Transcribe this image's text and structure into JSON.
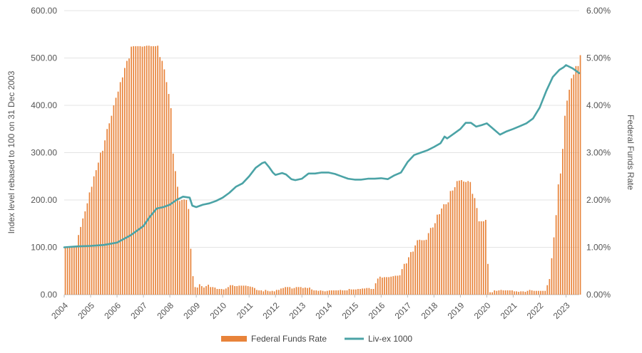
{
  "chart_data": {
    "type": "bar+line",
    "left_axis": {
      "label": "Index level rebased to 100 on 31 Dec 2003",
      "ylim": [
        0,
        600
      ],
      "ticks": [
        "0.00",
        "100.00",
        "200.00",
        "300.00",
        "400.00",
        "500.00",
        "600.00"
      ]
    },
    "right_axis": {
      "label": "Federal Funds Rate",
      "ylim": [
        0,
        6
      ],
      "ticks": [
        "0.00%",
        "1.00%",
        "2.00%",
        "3.00%",
        "4.00%",
        "5.00%",
        "6.00%"
      ]
    },
    "x_axis": {
      "range": [
        2004,
        2023.5
      ],
      "tick_labels": [
        "2004",
        "2005",
        "2006",
        "2007",
        "2008",
        "2009",
        "2010",
        "2011",
        "2012",
        "2013",
        "2014",
        "2015",
        "2016",
        "2017",
        "2018",
        "2019",
        "2020",
        "2021",
        "2022",
        "2023"
      ]
    },
    "grid": true,
    "legend_position": "bottom",
    "colors": {
      "bars": "#E8833A",
      "line": "#4BA3A6"
    },
    "series": [
      {
        "name": "Federal Funds Rate",
        "kind": "bar",
        "axis": "right",
        "monthly_start": 2004.0,
        "values": [
          1.0,
          1.0,
          1.0,
          1.0,
          1.0,
          1.03,
          1.26,
          1.43,
          1.61,
          1.76,
          1.93,
          2.16,
          2.28,
          2.5,
          2.63,
          2.79,
          3.0,
          3.04,
          3.26,
          3.5,
          3.62,
          3.78,
          4.0,
          4.16,
          4.29,
          4.49,
          4.59,
          4.79,
          4.94,
          4.99,
          5.24,
          5.25,
          5.25,
          5.25,
          5.25,
          5.24,
          5.25,
          5.26,
          5.26,
          5.25,
          5.25,
          5.25,
          5.26,
          5.02,
          4.94,
          4.76,
          4.49,
          4.24,
          3.94,
          2.98,
          2.61,
          2.28,
          1.98,
          2.0,
          2.01,
          2.0,
          1.81,
          0.97,
          0.39,
          0.16,
          0.15,
          0.22,
          0.18,
          0.15,
          0.18,
          0.21,
          0.16,
          0.16,
          0.15,
          0.12,
          0.12,
          0.12,
          0.11,
          0.13,
          0.16,
          0.2,
          0.2,
          0.18,
          0.18,
          0.19,
          0.19,
          0.19,
          0.19,
          0.18,
          0.17,
          0.16,
          0.14,
          0.1,
          0.09,
          0.09,
          0.07,
          0.1,
          0.08,
          0.07,
          0.08,
          0.07,
          0.1,
          0.1,
          0.13,
          0.14,
          0.16,
          0.16,
          0.16,
          0.13,
          0.14,
          0.16,
          0.16,
          0.16,
          0.14,
          0.15,
          0.14,
          0.15,
          0.11,
          0.09,
          0.09,
          0.08,
          0.09,
          0.08,
          0.07,
          0.08,
          0.09,
          0.09,
          0.09,
          0.09,
          0.09,
          0.1,
          0.09,
          0.09,
          0.09,
          0.12,
          0.11,
          0.11,
          0.11,
          0.12,
          0.12,
          0.13,
          0.13,
          0.14,
          0.14,
          0.12,
          0.12,
          0.24,
          0.34,
          0.38,
          0.36,
          0.37,
          0.37,
          0.37,
          0.38,
          0.39,
          0.4,
          0.4,
          0.41,
          0.54,
          0.65,
          0.66,
          0.79,
          0.9,
          0.91,
          1.04,
          1.15,
          1.16,
          1.15,
          1.15,
          1.16,
          1.3,
          1.41,
          1.42,
          1.51,
          1.69,
          1.7,
          1.82,
          1.91,
          1.91,
          1.95,
          2.19,
          2.2,
          2.27,
          2.4,
          2.41,
          2.42,
          2.39,
          2.38,
          2.4,
          2.38,
          2.13,
          2.04,
          1.83,
          1.55,
          1.55,
          1.55,
          1.58,
          0.65,
          0.05,
          0.05,
          0.09,
          0.08,
          0.09,
          0.1,
          0.09,
          0.09,
          0.09,
          0.09,
          0.09,
          0.07,
          0.07,
          0.06,
          0.07,
          0.07,
          0.06,
          0.08,
          0.1,
          0.09,
          0.08,
          0.08,
          0.08,
          0.08,
          0.08,
          0.08,
          0.2,
          0.33,
          0.77,
          1.21,
          1.68,
          2.33,
          2.56,
          3.08,
          3.78,
          4.1,
          4.33,
          4.57,
          4.65,
          4.83,
          4.83,
          5.06
        ]
      },
      {
        "name": "Liv-ex 1000",
        "kind": "line",
        "axis": "left",
        "points": [
          [
            2004.0,
            100
          ],
          [
            2004.5,
            102
          ],
          [
            2005.0,
            103
          ],
          [
            2005.5,
            105
          ],
          [
            2006.0,
            110
          ],
          [
            2006.5,
            125
          ],
          [
            2007.0,
            145
          ],
          [
            2007.25,
            165
          ],
          [
            2007.5,
            182
          ],
          [
            2007.75,
            185
          ],
          [
            2008.0,
            190
          ],
          [
            2008.25,
            200
          ],
          [
            2008.5,
            207
          ],
          [
            2008.75,
            205
          ],
          [
            2008.85,
            188
          ],
          [
            2009.0,
            185
          ],
          [
            2009.25,
            190
          ],
          [
            2009.5,
            193
          ],
          [
            2009.75,
            198
          ],
          [
            2010.0,
            205
          ],
          [
            2010.25,
            215
          ],
          [
            2010.5,
            228
          ],
          [
            2010.75,
            235
          ],
          [
            2011.0,
            250
          ],
          [
            2011.25,
            268
          ],
          [
            2011.5,
            278
          ],
          [
            2011.6,
            280
          ],
          [
            2011.75,
            270
          ],
          [
            2011.9,
            258
          ],
          [
            2012.0,
            253
          ],
          [
            2012.25,
            257
          ],
          [
            2012.4,
            254
          ],
          [
            2012.6,
            244
          ],
          [
            2012.75,
            242
          ],
          [
            2013.0,
            245
          ],
          [
            2013.25,
            256
          ],
          [
            2013.5,
            256
          ],
          [
            2013.75,
            258
          ],
          [
            2014.0,
            258
          ],
          [
            2014.25,
            255
          ],
          [
            2014.5,
            250
          ],
          [
            2014.75,
            245
          ],
          [
            2015.0,
            243
          ],
          [
            2015.25,
            243
          ],
          [
            2015.5,
            245
          ],
          [
            2015.75,
            245
          ],
          [
            2016.0,
            246
          ],
          [
            2016.25,
            244
          ],
          [
            2016.5,
            252
          ],
          [
            2016.75,
            258
          ],
          [
            2017.0,
            280
          ],
          [
            2017.25,
            295
          ],
          [
            2017.5,
            300
          ],
          [
            2017.75,
            305
          ],
          [
            2018.0,
            312
          ],
          [
            2018.25,
            320
          ],
          [
            2018.4,
            334
          ],
          [
            2018.5,
            330
          ],
          [
            2018.75,
            340
          ],
          [
            2019.0,
            350
          ],
          [
            2019.2,
            363
          ],
          [
            2019.4,
            363
          ],
          [
            2019.6,
            355
          ],
          [
            2019.8,
            358
          ],
          [
            2020.0,
            362
          ],
          [
            2020.25,
            350
          ],
          [
            2020.5,
            338
          ],
          [
            2020.75,
            345
          ],
          [
            2021.0,
            350
          ],
          [
            2021.25,
            356
          ],
          [
            2021.5,
            362
          ],
          [
            2021.75,
            372
          ],
          [
            2022.0,
            395
          ],
          [
            2022.25,
            430
          ],
          [
            2022.5,
            460
          ],
          [
            2022.75,
            475
          ],
          [
            2022.9,
            480
          ],
          [
            2023.0,
            485
          ],
          [
            2023.25,
            478
          ],
          [
            2023.4,
            472
          ],
          [
            2023.5,
            468
          ]
        ]
      }
    ]
  }
}
